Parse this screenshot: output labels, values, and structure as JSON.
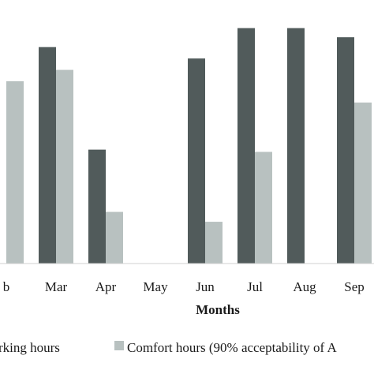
{
  "chart_data": {
    "type": "bar",
    "categories": [
      "Feb",
      "Mar",
      "Apr",
      "May",
      "Jun",
      "Jul",
      "Aug",
      "Sep"
    ],
    "category_labels": [
      "b",
      "Mar",
      "Apr",
      "May",
      "Jun",
      "Jul",
      "Aug",
      "Sep"
    ],
    "series": [
      {
        "name": "Working hours",
        "legend_label": "rking hours",
        "color": "#515b5b",
        "values": [
          null,
          285,
          150,
          0,
          270,
          310,
          310,
          298
        ]
      },
      {
        "name": "Comfort hours (90% acceptability of A",
        "legend_label": "Comfort hours (90% acceptability of A",
        "color": "#b8c1c0",
        "values": [
          240,
          255,
          68,
          0,
          55,
          147,
          null,
          212
        ]
      }
    ],
    "xlabel": "Months",
    "ylabel": "",
    "ylim": [
      0,
      320
    ],
    "grid": false,
    "legend_position": "bottom"
  }
}
